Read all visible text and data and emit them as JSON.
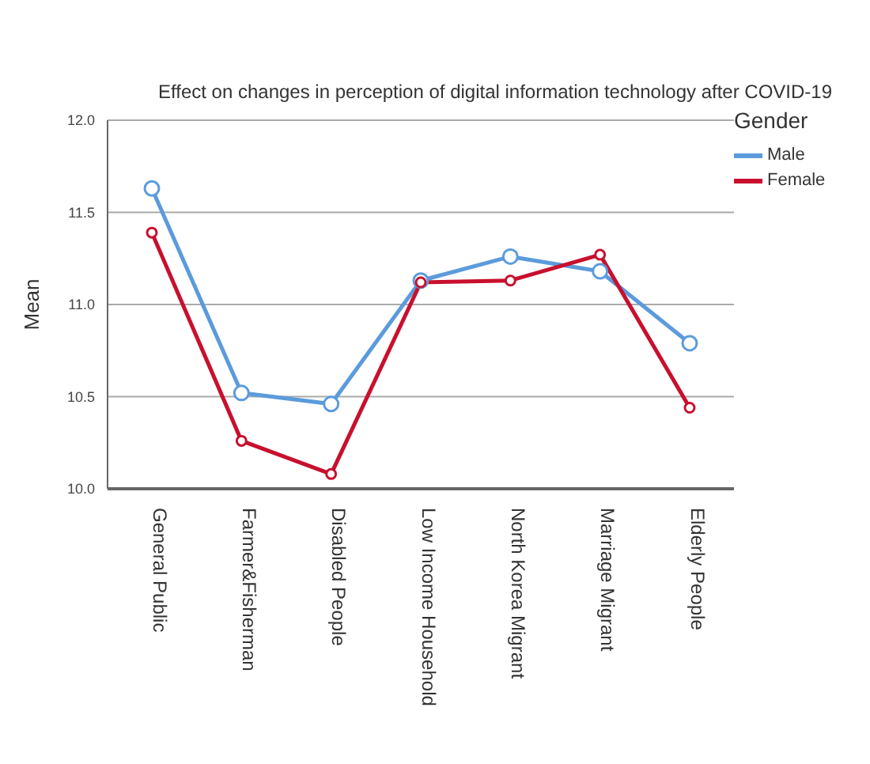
{
  "chart_data": {
    "type": "line",
    "title": "Effect on changes in perception of digital information technology after COVID-19",
    "ylabel": "Mean",
    "legend_title": "Gender",
    "categories": [
      "General Public",
      "Farmer&Fisherman",
      "Disabled People",
      "Low Income Household",
      "North Korea Migrant",
      "Marriage Migrant",
      "Elderly People"
    ],
    "series": [
      {
        "name": "Male",
        "color": "#5b9bdc",
        "values": [
          11.63,
          10.52,
          10.46,
          11.13,
          11.26,
          11.18,
          10.79
        ]
      },
      {
        "name": "Female",
        "color": "#c8102e",
        "values": [
          11.39,
          10.26,
          10.08,
          11.12,
          11.13,
          11.27,
          10.44
        ]
      }
    ],
    "ylim": [
      10.0,
      12.0
    ],
    "yticks": [
      {
        "value": 10,
        "label": "10.0"
      },
      {
        "value": 10.5,
        "label": "10.5"
      },
      {
        "value": 11,
        "label": "11.0"
      },
      {
        "value": 11.5,
        "label": "11.5"
      },
      {
        "value": 12,
        "label": "12.0"
      }
    ],
    "grid": "y",
    "legend": "top right",
    "marker": "circle",
    "line_style": "solid"
  }
}
